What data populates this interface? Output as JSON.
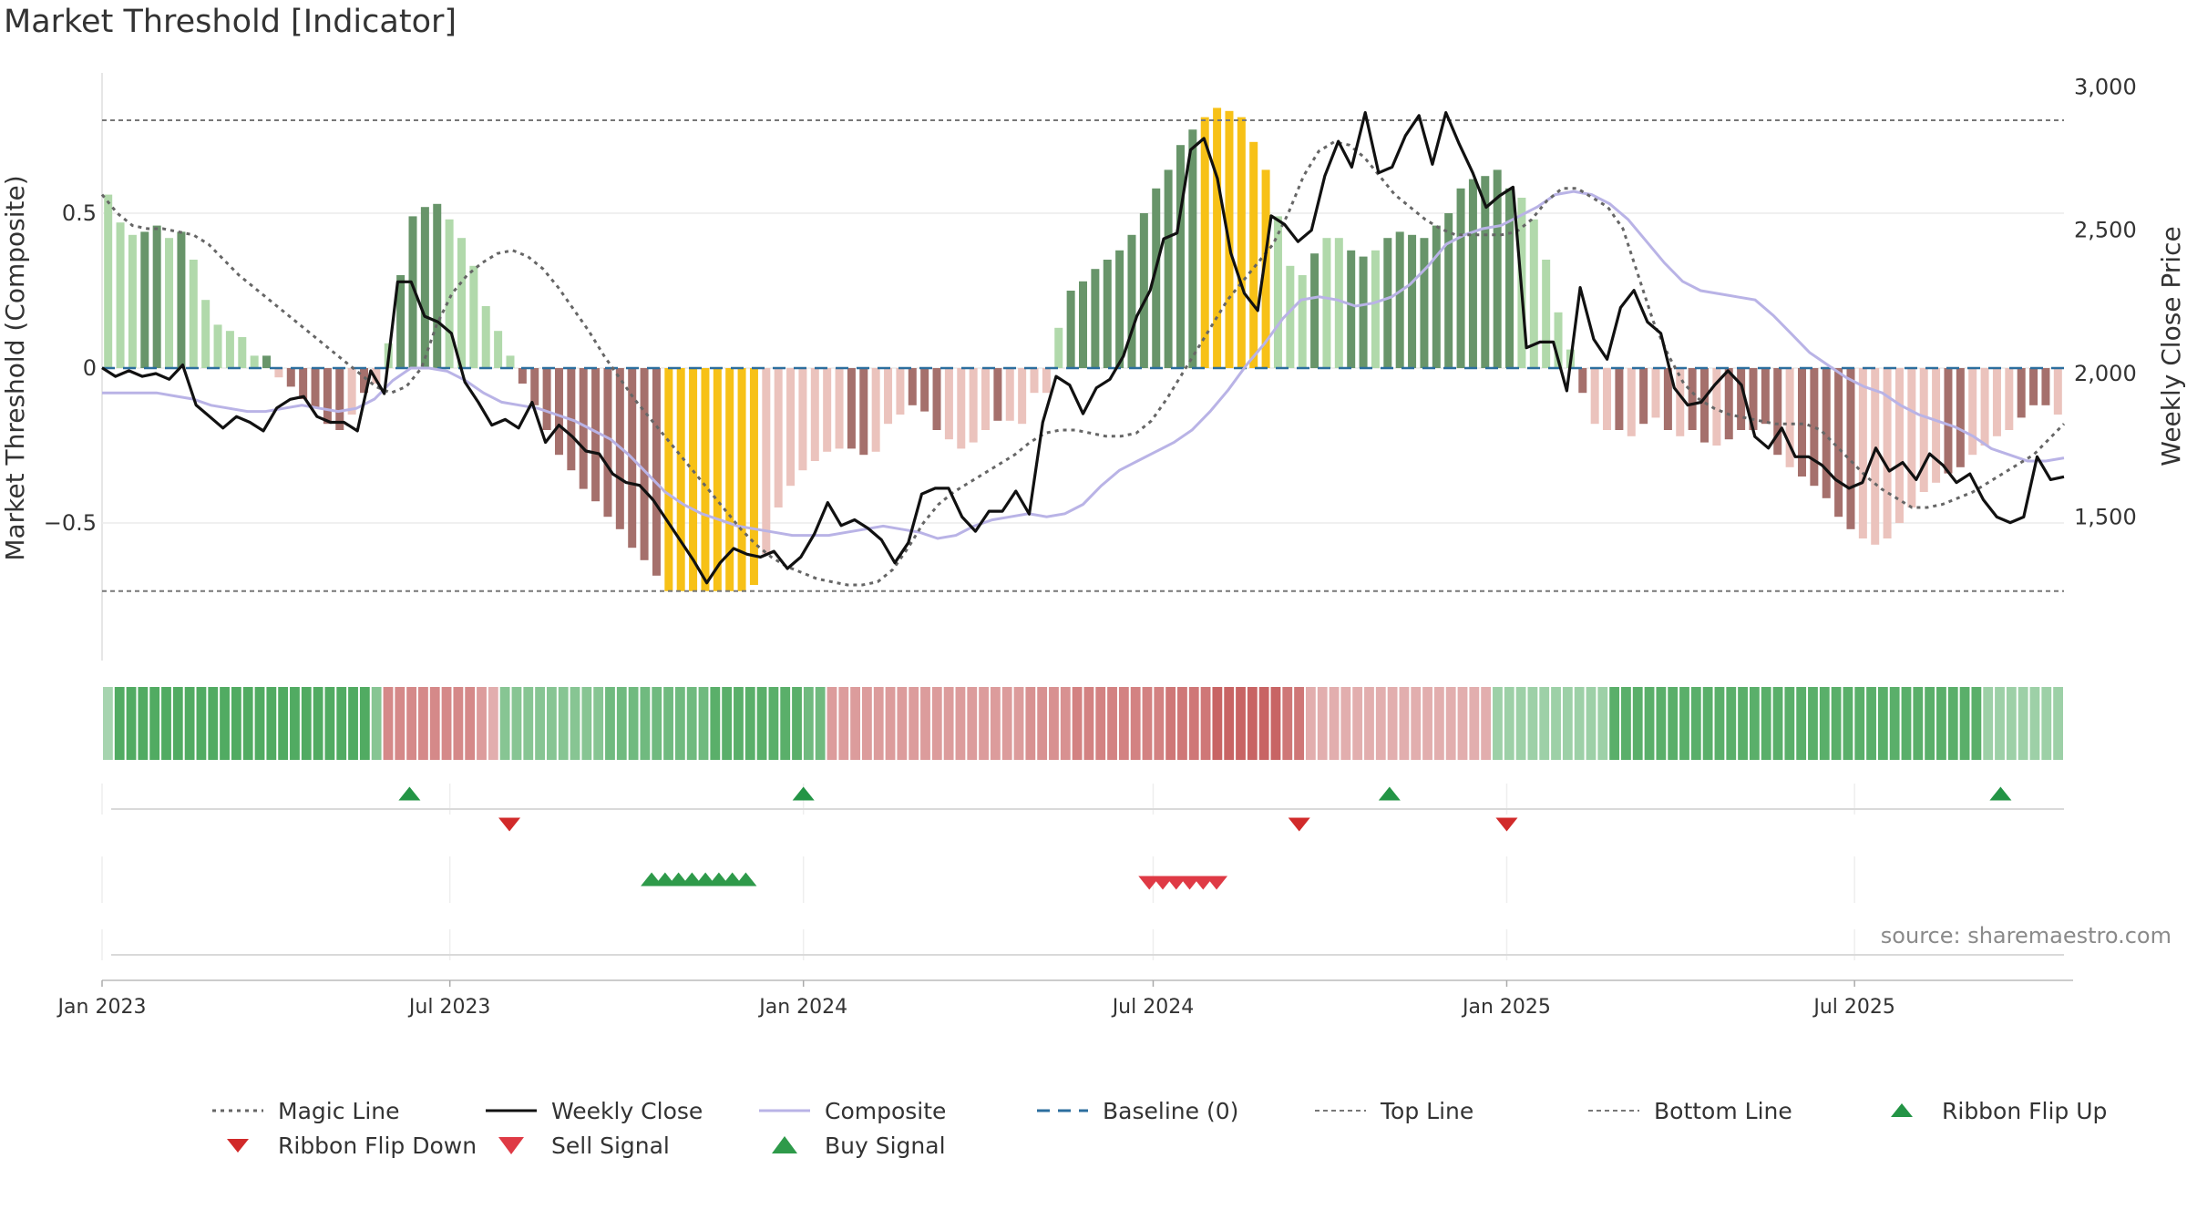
{
  "title": "Market Threshold [Indicator]",
  "source": "source: sharemaestro.com",
  "colors": {
    "magic": "#666666",
    "weekly": "#111111",
    "composite": "#b9b3e6",
    "baseline": "#2c6e9e",
    "threshold": "#777777",
    "gold": "#f7c117",
    "buy": "#2e9a4a",
    "ribbon_up": "#239445",
    "sell": "#df3a45",
    "ribbon_down": "#d12a2a"
  },
  "chart_data": {
    "type": "bar",
    "x_start": "2023-01-01",
    "x_end": "2025-10-18",
    "x_ticks": [
      {
        "date": "2023-01-01",
        "label": "Jan 2023"
      },
      {
        "date": "2023-07-01",
        "label": "Jul 2023"
      },
      {
        "date": "2024-01-01",
        "label": "Jan 2024"
      },
      {
        "date": "2024-07-01",
        "label": "Jul 2024"
      },
      {
        "date": "2025-01-01",
        "label": "Jan 2025"
      },
      {
        "date": "2025-07-01",
        "label": "Jul 2025"
      }
    ],
    "left_axis": {
      "label": "Market Threshold (Composite)",
      "ticks": [
        {
          "v": 0.5,
          "label": "0.5"
        },
        {
          "v": 0,
          "label": "0"
        },
        {
          "v": -0.5,
          "label": "−0.5"
        }
      ],
      "ylim": [
        -0.95,
        0.95
      ]
    },
    "right_axis": {
      "label": "Weekly Close Price",
      "ticks": [
        {
          "v": 1500,
          "label": "1,500"
        },
        {
          "v": 2000,
          "label": "2,000"
        },
        {
          "v": 2500,
          "label": "2,500"
        },
        {
          "v": 3000,
          "label": "3,000"
        }
      ],
      "ylim": [
        1150,
        3000
      ]
    },
    "top_line": 0.8,
    "bottom_line": -0.72,
    "composite_bars": [
      0.56,
      0.47,
      0.43,
      0.44,
      0.46,
      0.42,
      0.44,
      0.35,
      0.22,
      0.14,
      0.12,
      0.1,
      0.04,
      0.04,
      -0.03,
      -0.06,
      -0.1,
      -0.13,
      -0.18,
      -0.2,
      -0.15,
      -0.08,
      -0.05,
      0.08,
      0.3,
      0.49,
      0.52,
      0.53,
      0.48,
      0.42,
      0.33,
      0.2,
      0.12,
      0.04,
      -0.05,
      -0.12,
      -0.2,
      -0.28,
      -0.33,
      -0.39,
      -0.43,
      -0.48,
      -0.52,
      -0.58,
      -0.62,
      -0.67,
      -0.72,
      -0.72,
      -0.72,
      -0.72,
      -0.72,
      -0.72,
      -0.72,
      -0.7,
      -0.6,
      -0.45,
      -0.38,
      -0.33,
      -0.3,
      -0.27,
      -0.26,
      -0.26,
      -0.28,
      -0.27,
      -0.18,
      -0.15,
      -0.12,
      -0.14,
      -0.2,
      -0.23,
      -0.26,
      -0.24,
      -0.2,
      -0.17,
      -0.17,
      -0.18,
      -0.08,
      -0.08,
      0.13,
      0.25,
      0.28,
      0.32,
      0.35,
      0.38,
      0.43,
      0.5,
      0.58,
      0.64,
      0.72,
      0.77,
      0.81,
      0.84,
      0.83,
      0.81,
      0.73,
      0.64,
      0.49,
      0.33,
      0.3,
      0.37,
      0.42,
      0.42,
      0.38,
      0.36,
      0.38,
      0.42,
      0.44,
      0.43,
      0.42,
      0.46,
      0.5,
      0.58,
      0.61,
      0.62,
      0.64,
      0.58,
      0.55,
      0.48,
      0.35,
      0.18,
      0.06,
      -0.08,
      -0.18,
      -0.2,
      -0.2,
      -0.22,
      -0.18,
      -0.16,
      -0.2,
      -0.22,
      -0.2,
      -0.24,
      -0.25,
      -0.23,
      -0.2,
      -0.2,
      -0.18,
      -0.28,
      -0.32,
      -0.35,
      -0.38,
      -0.42,
      -0.48,
      -0.52,
      -0.55,
      -0.57,
      -0.55,
      -0.5,
      -0.45,
      -0.4,
      -0.37,
      -0.34,
      -0.32,
      -0.28,
      -0.25,
      -0.22,
      -0.2,
      -0.16,
      -0.12,
      -0.12,
      -0.15
    ],
    "bar_shades": [
      "l",
      "l",
      "l",
      "d",
      "d",
      "l",
      "d",
      "l",
      "l",
      "l",
      "l",
      "l",
      "l",
      "d",
      "l",
      "d",
      "d",
      "d",
      "d",
      "d",
      "l",
      "d",
      "l",
      "l",
      "d",
      "d",
      "d",
      "d",
      "l",
      "l",
      "l",
      "l",
      "l",
      "l",
      "d",
      "d",
      "d",
      "d",
      "d",
      "d",
      "d",
      "d",
      "d",
      "d",
      "d",
      "d",
      "g",
      "g",
      "g",
      "g",
      "g",
      "g",
      "g",
      "g",
      "l",
      "l",
      "l",
      "l",
      "l",
      "l",
      "l",
      "d",
      "d",
      "l",
      "l",
      "l",
      "d",
      "d",
      "d",
      "l",
      "l",
      "l",
      "l",
      "d",
      "l",
      "l",
      "l",
      "l",
      "l",
      "d",
      "d",
      "d",
      "d",
      "d",
      "d",
      "d",
      "d",
      "d",
      "d",
      "d",
      "g",
      "g",
      "g",
      "g",
      "g",
      "g",
      "l",
      "l",
      "l",
      "d",
      "l",
      "l",
      "d",
      "d",
      "l",
      "d",
      "d",
      "d",
      "d",
      "d",
      "d",
      "d",
      "d",
      "d",
      "d",
      "d",
      "l",
      "l",
      "l",
      "l",
      "l",
      "d",
      "l",
      "l",
      "d",
      "l",
      "d",
      "l",
      "d",
      "l",
      "d",
      "d",
      "l",
      "d",
      "d",
      "d",
      "d",
      "d",
      "l",
      "d",
      "d",
      "d",
      "d",
      "d",
      "l",
      "l",
      "l",
      "l",
      "l",
      "l",
      "l",
      "d",
      "d",
      "l",
      "l",
      "l",
      "l",
      "d",
      "d",
      "d"
    ],
    "weekly_close": [
      2020,
      1990,
      2010,
      1990,
      2000,
      1980,
      2030,
      1890,
      1850,
      1810,
      1850,
      1830,
      1800,
      1880,
      1910,
      1920,
      1850,
      1830,
      1830,
      1800,
      2010,
      1930,
      2320,
      2320,
      2200,
      2180,
      2140,
      1970,
      1900,
      1820,
      1840,
      1810,
      1900,
      1760,
      1820,
      1780,
      1730,
      1720,
      1650,
      1620,
      1610,
      1560,
      1490,
      1420,
      1350,
      1270,
      1340,
      1390,
      1370,
      1360,
      1380,
      1320,
      1360,
      1440,
      1550,
      1470,
      1490,
      1460,
      1420,
      1340,
      1410,
      1580,
      1600,
      1600,
      1500,
      1450,
      1520,
      1520,
      1590,
      1510,
      1830,
      1990,
      1960,
      1860,
      1950,
      1980,
      2060,
      2200,
      2290,
      2470,
      2490,
      2780,
      2820,
      2680,
      2420,
      2280,
      2220,
      2550,
      2520,
      2460,
      2500,
      2690,
      2810,
      2720,
      2910,
      2700,
      2720,
      2830,
      2900,
      2730,
      2910,
      2800,
      2700,
      2580,
      2620,
      2650,
      2090,
      2110,
      2110,
      1940,
      2300,
      2120,
      2050,
      2230,
      2290,
      2180,
      2140,
      1950,
      1890,
      1900,
      1960,
      2010,
      1960,
      1780,
      1740,
      1810,
      1710,
      1710,
      1680,
      1630,
      1600,
      1620,
      1740,
      1660,
      1690,
      1630,
      1720,
      1680,
      1620,
      1650,
      1560,
      1500,
      1480,
      1500,
      1710,
      1630,
      1640
    ],
    "magic_line": [
      0.56,
      0.5,
      0.46,
      0.45,
      0.45,
      0.44,
      0.43,
      0.4,
      0.35,
      0.3,
      0.26,
      0.22,
      0.18,
      0.14,
      0.1,
      0.06,
      0.02,
      -0.02,
      -0.06,
      -0.08,
      -0.06,
      0.0,
      0.14,
      0.24,
      0.3,
      0.34,
      0.37,
      0.38,
      0.36,
      0.32,
      0.26,
      0.19,
      0.12,
      0.04,
      -0.03,
      -0.1,
      -0.16,
      -0.22,
      -0.28,
      -0.34,
      -0.4,
      -0.46,
      -0.52,
      -0.57,
      -0.61,
      -0.64,
      -0.66,
      -0.68,
      -0.69,
      -0.7,
      -0.7,
      -0.69,
      -0.65,
      -0.58,
      -0.5,
      -0.44,
      -0.4,
      -0.37,
      -0.34,
      -0.31,
      -0.28,
      -0.24,
      -0.21,
      -0.2,
      -0.2,
      -0.21,
      -0.22,
      -0.22,
      -0.21,
      -0.17,
      -0.1,
      -0.02,
      0.06,
      0.14,
      0.22,
      0.28,
      0.34,
      0.4,
      0.5,
      0.62,
      0.7,
      0.73,
      0.72,
      0.68,
      0.62,
      0.56,
      0.52,
      0.48,
      0.45,
      0.43,
      0.43,
      0.43,
      0.43,
      0.44,
      0.48,
      0.54,
      0.58,
      0.58,
      0.55,
      0.52,
      0.45,
      0.3,
      0.15,
      0.04,
      -0.05,
      -0.1,
      -0.13,
      -0.15,
      -0.16,
      -0.17,
      -0.18,
      -0.18,
      -0.18,
      -0.2,
      -0.25,
      -0.3,
      -0.35,
      -0.39,
      -0.42,
      -0.45,
      -0.45,
      -0.44,
      -0.42,
      -0.4,
      -0.37,
      -0.34,
      -0.31,
      -0.28,
      -0.23,
      -0.18
    ],
    "composite_line": [
      -0.08,
      -0.08,
      -0.08,
      -0.08,
      -0.09,
      -0.1,
      -0.12,
      -0.13,
      -0.14,
      -0.14,
      -0.13,
      -0.12,
      -0.13,
      -0.14,
      -0.13,
      -0.1,
      -0.04,
      0.0,
      0.0,
      -0.01,
      -0.04,
      -0.08,
      -0.11,
      -0.12,
      -0.13,
      -0.15,
      -0.17,
      -0.2,
      -0.23,
      -0.28,
      -0.34,
      -0.4,
      -0.44,
      -0.47,
      -0.49,
      -0.51,
      -0.52,
      -0.53,
      -0.54,
      -0.54,
      -0.54,
      -0.53,
      -0.52,
      -0.51,
      -0.52,
      -0.53,
      -0.55,
      -0.54,
      -0.51,
      -0.49,
      -0.48,
      -0.47,
      -0.48,
      -0.47,
      -0.44,
      -0.38,
      -0.33,
      -0.3,
      -0.27,
      -0.24,
      -0.2,
      -0.14,
      -0.07,
      0.01,
      0.08,
      0.16,
      0.22,
      0.23,
      0.22,
      0.2,
      0.21,
      0.23,
      0.27,
      0.33,
      0.4,
      0.43,
      0.45,
      0.46,
      0.49,
      0.52,
      0.56,
      0.57,
      0.56,
      0.53,
      0.48,
      0.41,
      0.34,
      0.28,
      0.25,
      0.24,
      0.23,
      0.22,
      0.17,
      0.11,
      0.05,
      0.01,
      -0.03,
      -0.06,
      -0.08,
      -0.12,
      -0.15,
      -0.17,
      -0.19,
      -0.22,
      -0.26,
      -0.28,
      -0.3,
      -0.3,
      -0.29
    ],
    "ribbon_levels": [
      0.8,
      2.7,
      2.7,
      2.7,
      2.7,
      2.7,
      2.7,
      2.7,
      2.7,
      2.7,
      2.7,
      2.7,
      2.7,
      2.7,
      2.7,
      2.7,
      2.7,
      2.7,
      2.7,
      2.7,
      2.7,
      2.7,
      2.7,
      1.5,
      -2,
      -2,
      -2,
      -2,
      -2,
      -2,
      -2,
      -2,
      -1.5,
      -1,
      1.5,
      1.5,
      1.5,
      1.5,
      1.5,
      1.5,
      1.5,
      1.5,
      1.5,
      2,
      2,
      2,
      2,
      2,
      2,
      2,
      2,
      2,
      2.5,
      2.5,
      2.5,
      2.5,
      2.5,
      2.5,
      2.5,
      2.5,
      2,
      2,
      -1.5,
      -1.5,
      -1.5,
      -1.5,
      -1.5,
      -1.5,
      -1.5,
      -1.5,
      -1.5,
      -1.5,
      -1.5,
      -1.5,
      -1.5,
      -1.5,
      -1.5,
      -1.5,
      -1.5,
      -1.8,
      -1.8,
      -1.8,
      -1.8,
      -2.2,
      -2.2,
      -2.2,
      -2.2,
      -2.2,
      -2.2,
      -2.2,
      -2.2,
      -2.5,
      -2.5,
      -2.5,
      -2.5,
      -3,
      -3,
      -3,
      -3,
      -3,
      -3,
      -2.5,
      -2.5,
      -1,
      -1,
      -1,
      -1,
      -1,
      -1,
      -1,
      -1,
      -1,
      -1,
      -1,
      -1,
      -1,
      -1,
      -1,
      -1,
      1,
      1,
      1,
      1,
      1,
      1,
      1,
      1,
      1,
      1,
      2.5,
      2.5,
      2.5,
      2.5,
      2.5,
      2.5,
      2.5,
      2.5,
      2.5,
      2.5,
      2.5,
      2.5,
      2.5,
      2.5,
      2.5,
      2.5,
      2.5,
      2.5,
      2.5,
      2.5,
      2.5,
      2.5,
      2.5,
      2.5,
      2.5,
      2.5,
      2.5,
      2.5,
      2.5,
      2.5,
      2.5,
      2.5,
      1,
      1,
      1,
      1,
      1,
      1,
      1
    ],
    "ribbon_flip_up": [
      "2023-06-10",
      "2024-01-01",
      "2024-11-01",
      "2025-09-15"
    ],
    "ribbon_flip_down": [
      "2023-08-01",
      "2024-09-15",
      "2025-01-01"
    ],
    "buy_signals": [
      "2023-10-14",
      "2023-10-21",
      "2023-10-28",
      "2023-11-04",
      "2023-11-11",
      "2023-11-18",
      "2023-11-25",
      "2023-12-02"
    ],
    "sell_signals": [
      "2024-06-29",
      "2024-07-06",
      "2024-07-13",
      "2024-07-20",
      "2024-07-27",
      "2024-08-03"
    ],
    "legend": [
      {
        "key": "magic",
        "label": "Magic Line"
      },
      {
        "key": "weekly",
        "label": "Weekly Close"
      },
      {
        "key": "composite",
        "label": "Composite"
      },
      {
        "key": "baseline",
        "label": "Baseline (0)"
      },
      {
        "key": "top",
        "label": "Top Line"
      },
      {
        "key": "bottom",
        "label": "Bottom Line"
      },
      {
        "key": "flipup",
        "label": "Ribbon Flip Up"
      },
      {
        "key": "flipdown",
        "label": "Ribbon Flip Down"
      },
      {
        "key": "sell",
        "label": "Sell Signal"
      },
      {
        "key": "buy",
        "label": "Buy Signal"
      }
    ]
  }
}
